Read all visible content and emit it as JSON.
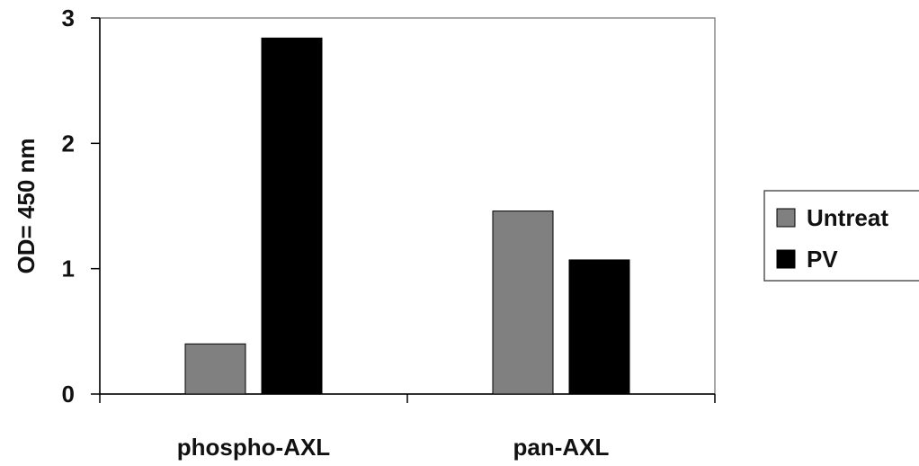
{
  "chart_data": {
    "type": "bar",
    "title": "",
    "xlabel": "",
    "ylabel": "OD= 450 nm",
    "categories": [
      "phospho-AXL",
      "pan-AXL"
    ],
    "series": [
      {
        "name": "Untreat",
        "values": [
          0.4,
          1.46
        ],
        "color": "#808080"
      },
      {
        "name": "PV",
        "values": [
          2.84,
          1.07
        ],
        "color": "#000000"
      }
    ],
    "ylim": [
      0,
      3
    ],
    "yticks": [
      0,
      1,
      2,
      3
    ],
    "grid": false,
    "legend_position": "right"
  }
}
